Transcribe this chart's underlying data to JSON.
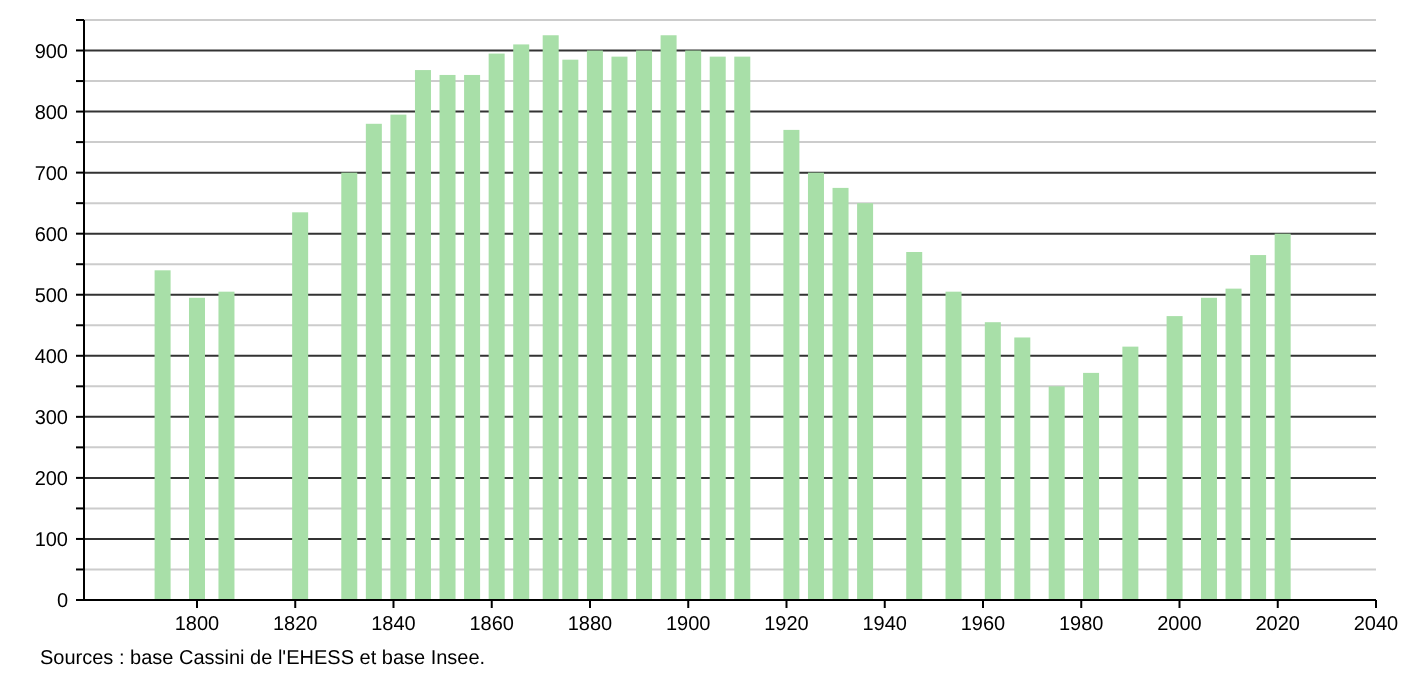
{
  "chart_data": {
    "type": "bar",
    "x": [
      1793,
      1800,
      1806,
      1821,
      1831,
      1836,
      1841,
      1846,
      1851,
      1856,
      1861,
      1866,
      1872,
      1876,
      1881,
      1886,
      1891,
      1896,
      1901,
      1906,
      1911,
      1921,
      1926,
      1931,
      1936,
      1946,
      1954,
      1962,
      1968,
      1975,
      1982,
      1990,
      1999,
      2006,
      2011,
      2016,
      2021
    ],
    "values": [
      540,
      495,
      505,
      635,
      700,
      780,
      795,
      868,
      860,
      860,
      895,
      910,
      925,
      885,
      900,
      890,
      900,
      925,
      900,
      890,
      890,
      770,
      700,
      675,
      650,
      570,
      505,
      455,
      430,
      350,
      372,
      415,
      465,
      495,
      510,
      565,
      600
    ],
    "color": "#a8dfa8",
    "xlim": [
      1777,
      2040
    ],
    "xticks": [
      1800,
      1820,
      1840,
      1860,
      1880,
      1900,
      1920,
      1940,
      1960,
      1980,
      2000,
      2020,
      2040
    ],
    "ylim": [
      0,
      950
    ],
    "yticks": [
      0,
      {
        "value": 50,
        "label": null
      },
      100,
      {
        "value": 150,
        "label": null
      },
      200,
      {
        "value": 250,
        "label": null
      },
      300,
      {
        "value": 350,
        "label": null
      },
      400,
      {
        "value": 450,
        "label": null
      },
      500,
      {
        "value": 550,
        "label": null
      },
      600,
      {
        "value": 650,
        "label": null
      },
      700,
      {
        "value": 750,
        "label": null
      },
      800,
      {
        "value": 850,
        "label": null
      },
      900,
      {
        "value": 950,
        "label": null
      }
    ],
    "grid": "y",
    "annotations": [
      "Sources : base Cassini de l'EHESS et base Insee."
    ]
  }
}
